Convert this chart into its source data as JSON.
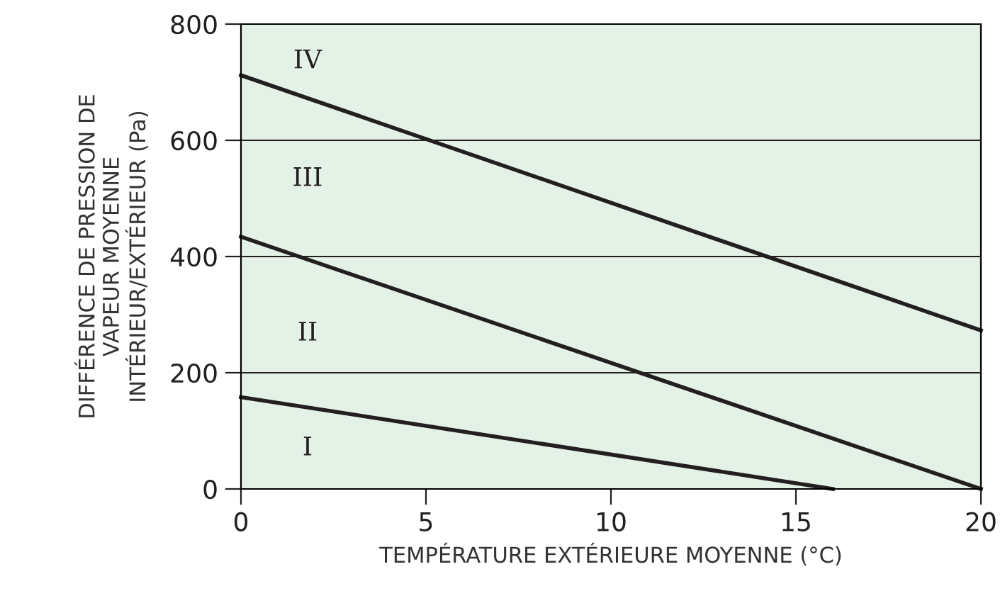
{
  "chart_data": {
    "type": "line",
    "xlabel": "TEMPÉRATURE EXTÉRIEURE MOYENNE (°C)",
    "ylabel": "DIFFÉRENCE DE PRESSION DE\nVAPEUR MOYENNE\nINTÉRIEUR/EXTÉRIEUR (Pa)",
    "series": [
      {
        "color": "#231f20",
        "x": [
          0,
          16
        ],
        "values": [
          158,
          0
        ]
      },
      {
        "color": "#231f20",
        "x": [
          0,
          20
        ],
        "values": [
          434,
          0
        ]
      },
      {
        "color": "#231f20",
        "x": [
          0,
          20
        ],
        "values": [
          712,
          273
        ]
      }
    ],
    "annotations": [
      "I",
      "II",
      "III",
      "IV"
    ],
    "xlim": [
      0,
      20
    ],
    "ylim": [
      0,
      800
    ],
    "xticks": [
      0,
      5,
      10,
      15,
      20
    ],
    "yticks": [
      0,
      200,
      400,
      600,
      800
    ],
    "grid": "y",
    "marker": "none",
    "line_style": "solid",
    "legend": false
  }
}
